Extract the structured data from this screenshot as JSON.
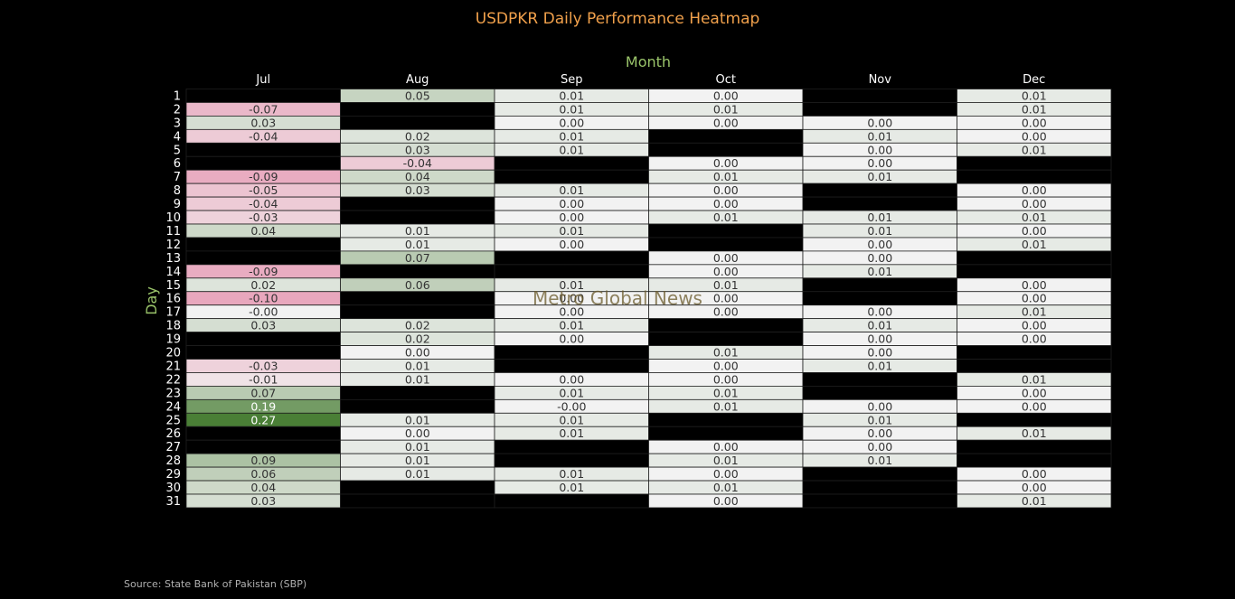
{
  "chart_data": {
    "type": "heatmap",
    "title": "USDPKR Daily Performance Heatmap",
    "xlabel": "Month",
    "ylabel": "Day",
    "columns": [
      "Jul",
      "Aug",
      "Sep",
      "Oct",
      "Nov",
      "Dec"
    ],
    "rows": [
      "1",
      "2",
      "3",
      "4",
      "5",
      "6",
      "7",
      "8",
      "9",
      "10",
      "11",
      "12",
      "13",
      "14",
      "15",
      "16",
      "17",
      "18",
      "19",
      "20",
      "21",
      "22",
      "23",
      "24",
      "25",
      "26",
      "27",
      "28",
      "29",
      "30",
      "31"
    ],
    "values": [
      [
        null,
        0.05,
        0.01,
        0.0,
        null,
        0.01
      ],
      [
        -0.07,
        null,
        0.01,
        0.01,
        null,
        0.01
      ],
      [
        0.03,
        null,
        0.0,
        0.0,
        0.0,
        0.0
      ],
      [
        -0.04,
        0.02,
        0.01,
        null,
        0.01,
        0.0
      ],
      [
        null,
        0.03,
        0.01,
        null,
        0.0,
        0.01
      ],
      [
        null,
        -0.04,
        null,
        0.0,
        0.0,
        null
      ],
      [
        -0.09,
        0.04,
        null,
        0.01,
        0.01,
        null
      ],
      [
        -0.05,
        0.03,
        0.01,
        0.0,
        null,
        0.0
      ],
      [
        -0.04,
        null,
        0.0,
        0.0,
        null,
        0.0
      ],
      [
        -0.03,
        null,
        0.0,
        0.01,
        0.01,
        0.01
      ],
      [
        0.04,
        0.01,
        0.01,
        null,
        0.01,
        0.0
      ],
      [
        null,
        0.01,
        0.0,
        null,
        0.0,
        0.01
      ],
      [
        null,
        0.07,
        null,
        0.0,
        0.0,
        null
      ],
      [
        -0.09,
        null,
        null,
        0.0,
        0.01,
        null
      ],
      [
        0.02,
        0.06,
        0.01,
        0.01,
        null,
        0.0
      ],
      [
        -0.1,
        null,
        0.0,
        0.0,
        null,
        0.0
      ],
      [
        -0.0,
        null,
        0.0,
        0.0,
        0.0,
        0.01
      ],
      [
        0.03,
        0.02,
        0.01,
        null,
        0.01,
        0.0
      ],
      [
        null,
        0.02,
        0.0,
        null,
        0.0,
        0.0
      ],
      [
        null,
        0.0,
        null,
        0.01,
        0.0,
        null
      ],
      [
        -0.03,
        0.01,
        null,
        0.0,
        0.01,
        null
      ],
      [
        -0.01,
        0.01,
        0.0,
        0.0,
        null,
        0.01
      ],
      [
        0.07,
        null,
        0.01,
        0.01,
        null,
        0.0
      ],
      [
        0.19,
        null,
        -0.0,
        0.01,
        0.0,
        0.0
      ],
      [
        0.27,
        0.01,
        0.01,
        null,
        0.01,
        null
      ],
      [
        null,
        0.0,
        0.01,
        null,
        0.0,
        0.01
      ],
      [
        null,
        0.01,
        null,
        0.0,
        0.0,
        null
      ],
      [
        0.09,
        0.01,
        null,
        0.01,
        0.01,
        null
      ],
      [
        0.06,
        0.01,
        0.01,
        0.0,
        null,
        0.0
      ],
      [
        0.04,
        null,
        0.01,
        0.01,
        null,
        0.0
      ],
      [
        0.03,
        null,
        null,
        0.0,
        null,
        0.01
      ]
    ],
    "value_format": "2 decimals",
    "missing_color": "#000000",
    "color_scale": {
      "min": -0.1,
      "max": 0.27,
      "negative": "#e8a7bd",
      "zero": "#f2f2f2",
      "positive": "#4a7f36"
    },
    "legend": "none",
    "grid": false
  },
  "colors": {
    "background": "#000000",
    "title": "#f0a04b",
    "axis_label": "#9ac46a",
    "tick": "#ffffff",
    "source": "#b0b0b0",
    "watermark": "#6b5a2c",
    "cell_text_dark": "#333333",
    "cell_text_light": "#ffffff"
  },
  "source": "Source: State Bank of Pakistan (SBP)",
  "watermark": "Metro Global News"
}
